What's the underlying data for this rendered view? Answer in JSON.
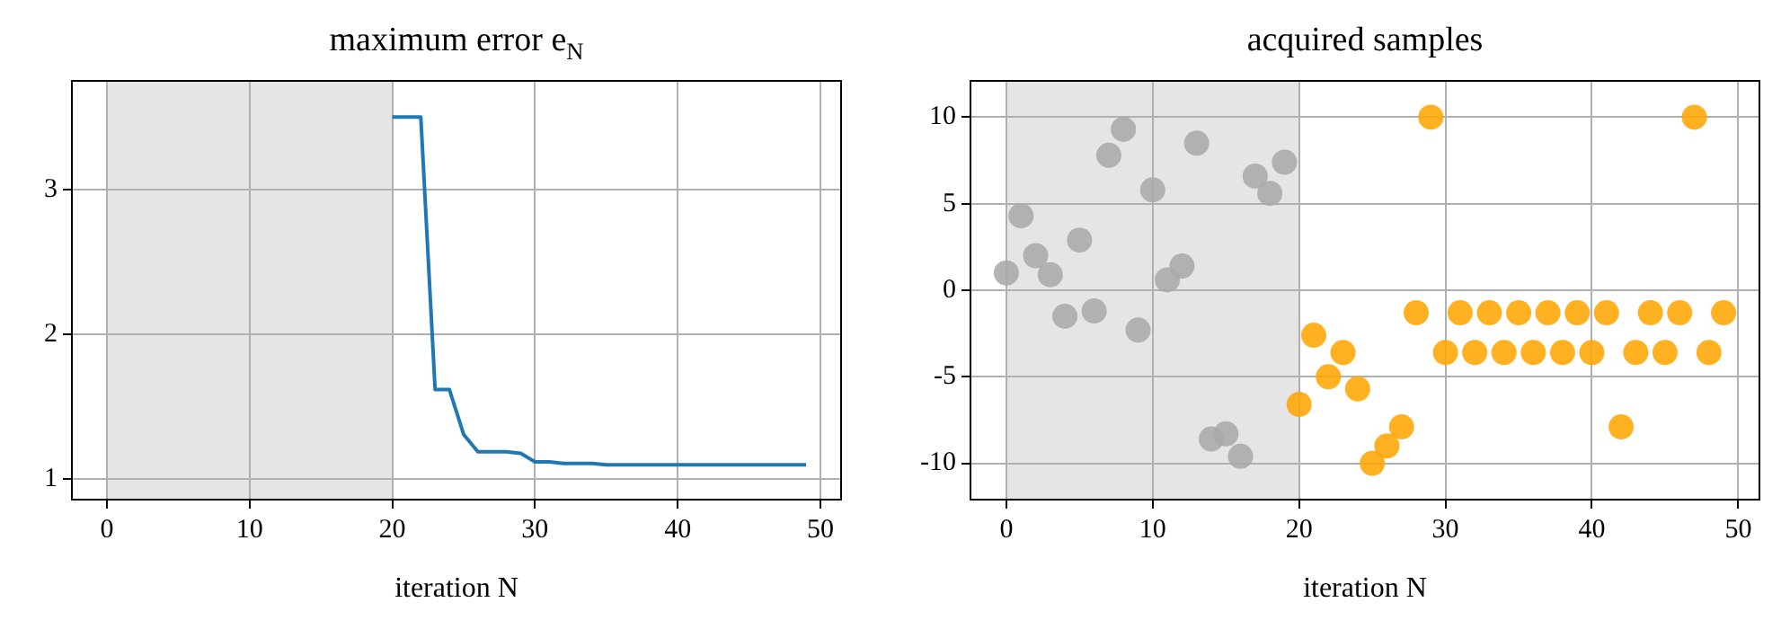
{
  "chart_data": [
    {
      "type": "line",
      "title": "maximum error e$_{N}$",
      "xlabel": "iteration N",
      "x": [
        20,
        21,
        22,
        23,
        24,
        25,
        26,
        27,
        28,
        29,
        30,
        31,
        32,
        33,
        34,
        35,
        36,
        37,
        38,
        39,
        40,
        41,
        42,
        43,
        44,
        45,
        46,
        47,
        48,
        49
      ],
      "series": [
        {
          "color": "#1f77b4",
          "values": [
            3.5,
            3.5,
            3.5,
            1.62,
            1.62,
            1.31,
            1.19,
            1.19,
            1.19,
            1.18,
            1.12,
            1.12,
            1.11,
            1.11,
            1.11,
            1.1,
            1.1,
            1.1,
            1.1,
            1.1,
            1.1,
            1.1,
            1.1,
            1.1,
            1.1,
            1.1,
            1.1,
            1.1,
            1.1,
            1.1
          ]
        }
      ],
      "xlim": [
        -2.45,
        51.45
      ],
      "xticks": [
        0,
        10,
        20,
        30,
        40,
        50
      ],
      "ylim": [
        0.86,
        3.75
      ],
      "yticks": [
        1,
        2,
        3
      ],
      "bands": [
        {
          "axis": "x",
          "from": 0,
          "to": 20,
          "color": "#e5e5e5"
        }
      ],
      "grid": true,
      "marker": "none",
      "line_style": "solid"
    },
    {
      "type": "scatter",
      "title": "acquired samples",
      "xlabel": "iteration N",
      "series": [
        {
          "color": "#a9a9a9",
          "x": [
            0,
            1,
            2,
            3,
            4,
            5,
            6,
            7,
            8,
            9,
            10,
            11,
            12,
            13,
            14,
            15,
            16,
            17,
            18,
            19
          ],
          "values": [
            1.0,
            4.3,
            2.0,
            0.9,
            -1.5,
            2.9,
            -1.2,
            7.8,
            9.3,
            -2.3,
            5.8,
            0.6,
            1.4,
            8.5,
            -8.6,
            -8.3,
            -9.6,
            6.6,
            5.6,
            7.4
          ]
        },
        {
          "color": "#ffa500",
          "x": [
            20,
            21,
            22,
            23,
            24,
            25,
            26,
            27,
            28,
            29,
            30,
            31,
            32,
            33,
            34,
            35,
            36,
            37,
            38,
            39,
            40,
            41,
            42,
            43,
            44,
            45,
            46,
            47,
            48,
            49
          ],
          "values": [
            -6.6,
            -2.6,
            -5.0,
            -3.6,
            -5.7,
            -10.0,
            -9.0,
            -7.9,
            -1.3,
            10.0,
            -3.6,
            -1.3,
            -3.6,
            -1.3,
            -3.6,
            -1.3,
            -3.6,
            -1.3,
            -3.6,
            -1.3,
            -3.6,
            -1.3,
            -7.9,
            -3.6,
            -1.3,
            -3.6,
            -1.3,
            10.0,
            -3.6,
            -1.3
          ]
        }
      ],
      "xlim": [
        -2.45,
        51.45
      ],
      "xticks": [
        0,
        10,
        20,
        30,
        40,
        50
      ],
      "ylim": [
        -12.1,
        12.1
      ],
      "yticks": [
        -10,
        -5,
        0,
        5,
        10
      ],
      "bands": [
        {
          "axis": "x",
          "from": 0,
          "to": 20,
          "color": "#e5e5e5"
        }
      ],
      "grid": true,
      "marker": "circle"
    }
  ]
}
